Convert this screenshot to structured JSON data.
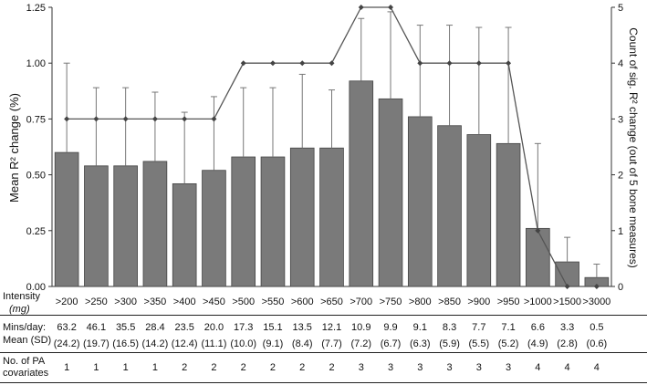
{
  "chart_data": {
    "type": "bar",
    "categories": [
      ">200",
      ">250",
      ">300",
      ">350",
      ">400",
      ">450",
      ">500",
      ">550",
      ">600",
      ">650",
      ">700",
      ">750",
      ">800",
      ">850",
      ">900",
      ">950",
      ">1000",
      ">1500",
      ">3000"
    ],
    "series": [
      {
        "name": "Mean R² change (%)",
        "type": "bar",
        "values": [
          0.6,
          0.54,
          0.54,
          0.56,
          0.46,
          0.52,
          0.58,
          0.58,
          0.62,
          0.62,
          0.92,
          0.84,
          0.76,
          0.72,
          0.68,
          0.64,
          0.26,
          0.11,
          0.04
        ],
        "error_upper": [
          1.0,
          0.89,
          0.89,
          0.87,
          0.78,
          0.85,
          0.89,
          0.89,
          0.95,
          0.88,
          1.2,
          1.23,
          1.17,
          1.17,
          1.16,
          1.16,
          0.64,
          0.22,
          0.1
        ]
      },
      {
        "name": "Count of sig. R² change (out of 5 bone measures)",
        "type": "line",
        "axis": "right",
        "values": [
          3,
          3,
          3,
          3,
          3,
          3,
          4,
          4,
          4,
          4,
          5,
          5,
          4,
          4,
          4,
          4,
          1,
          0,
          0
        ]
      }
    ],
    "ylabel": "Mean R² change (%)",
    "ylabel_right": "Count of sig. R² change (out of 5 bone measures)",
    "ylim": [
      0,
      1.25
    ],
    "ylim_right": [
      0,
      5
    ],
    "yticks": [
      "0.00",
      "0.25",
      "0.50",
      "0.75",
      "1.00",
      "1.25"
    ],
    "yticks_right": [
      "0",
      "1",
      "2",
      "3",
      "4",
      "5"
    ],
    "bar_color": "#7a7a7a",
    "line_color": "#555555",
    "grid": false
  },
  "table": {
    "intensity_label": "Intensity",
    "intensity_unit": "(mg)",
    "mins_label_1": "Mins/day:",
    "mins_label_2": "Mean (SD)",
    "mins_mean": [
      "63.2",
      "46.1",
      "35.5",
      "28.4",
      "23.5",
      "20.0",
      "17.3",
      "15.1",
      "13.5",
      "12.1",
      "10.9",
      "9.9",
      "9.1",
      "8.3",
      "7.7",
      "7.1",
      "6.6",
      "3.3",
      "0.5"
    ],
    "mins_sd": [
      "(24.2)",
      "(19.7)",
      "(16.5)",
      "(14.2)",
      "(12.4)",
      "(11.1)",
      "(10.0)",
      "(9.1)",
      "(8.4)",
      "(7.7)",
      "(7.2)",
      "(6.7)",
      "(6.3)",
      "(5.9)",
      "(5.5)",
      "(5.2)",
      "(4.9)",
      "(2.8)",
      "(0.6)"
    ],
    "covariates_label_1": "No. of PA",
    "covariates_label_2": "covariates",
    "covariates": [
      "1",
      "1",
      "1",
      "1",
      "2",
      "2",
      "2",
      "2",
      "2",
      "2",
      "3",
      "3",
      "3",
      "3",
      "3",
      "3",
      "4",
      "4",
      "4"
    ]
  }
}
